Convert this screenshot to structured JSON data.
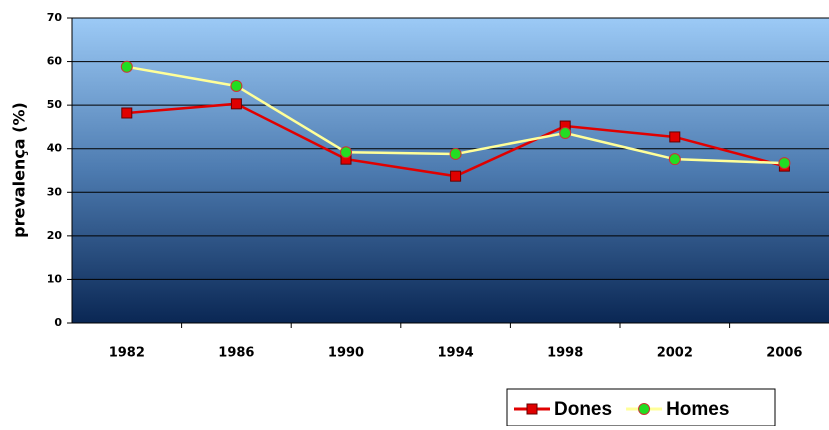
{
  "chart_data": {
    "type": "line",
    "y_label": "prevalença (%)",
    "categories": [
      "1982",
      "1986",
      "1990",
      "1994",
      "1998",
      "2002",
      "2006"
    ],
    "series": [
      {
        "name": "Dones",
        "color": "#e00000",
        "marker": "square",
        "marker_color": "#e00000",
        "values": [
          48.2,
          50.3,
          37.6,
          33.7,
          45.2,
          42.7,
          36
        ]
      },
      {
        "name": "Homes",
        "color": "#ffff99",
        "marker": "circle",
        "marker_color": "#22dd22",
        "values": [
          58.8,
          54.4,
          39.2,
          38.8,
          43.6,
          37.6,
          36.7
        ]
      }
    ],
    "ylim": [
      0,
      70
    ],
    "yticks": [
      0,
      10,
      20,
      30,
      40,
      50,
      60,
      70
    ],
    "grid": true,
    "legend": "bottom-right"
  }
}
